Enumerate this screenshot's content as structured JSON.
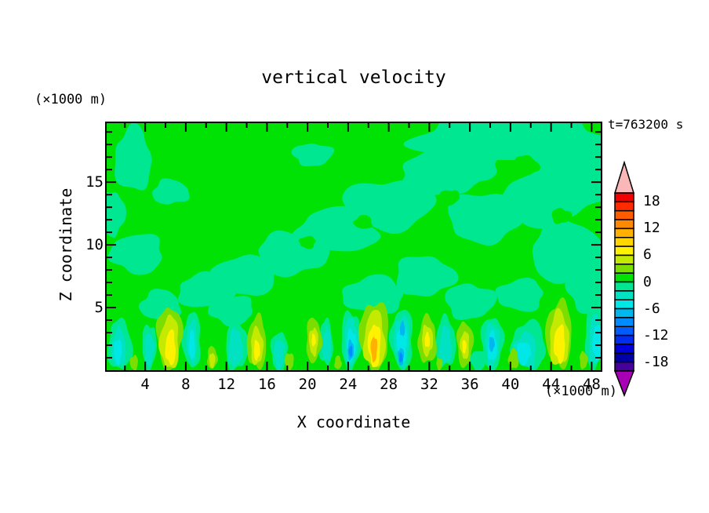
{
  "title": "vertical velocity",
  "timestamp": "t=763200 s",
  "chart_data": {
    "type": "contour",
    "title": "vertical velocity",
    "time_annotation": "t=763200 s",
    "xlabel": "X coordinate",
    "ylabel": "Z coordinate",
    "x_unit": "(×1000 m)",
    "y_unit": "(×1000 m)",
    "xlim": [
      0.2,
      48.9
    ],
    "ylim": [
      0,
      19.7
    ],
    "x_major_ticks": [
      4,
      8,
      12,
      16,
      20,
      24,
      28,
      32,
      36,
      40,
      44,
      48
    ],
    "x_minor_step": 2,
    "y_major_ticks": [
      5,
      10,
      15
    ],
    "y_minor_step": 1,
    "contour_interval": 2,
    "colorbar": {
      "tick_labels": [
        18,
        12,
        6,
        0,
        -6,
        -12,
        -18
      ],
      "value_top": 20,
      "value_bottom": -20,
      "segment_colors": [
        "#f20000",
        "#ff2a00",
        "#ff5c00",
        "#ff8a00",
        "#ffb000",
        "#ffd600",
        "#fff200",
        "#c3ea00",
        "#7bdd00",
        "#00e204",
        "#00e792",
        "#00e2c2",
        "#00e7e7",
        "#00b7ef",
        "#008cff",
        "#005cff",
        "#002df0",
        "#0000da",
        "#0000a8",
        "#46009b"
      ],
      "over_arrow_color": "#f9b7b7",
      "under_arrow_color": "#a800b4"
    },
    "background_level_index": 9,
    "levels_key": "feature = [x, z, rx, rz, color_index] in axis units (×1000 m); color_index points into colorbar.segment_colors",
    "features": [
      [
        40,
        18.6,
        9.5,
        2.0,
        10
      ],
      [
        46,
        15.5,
        4.5,
        3.0,
        10
      ],
      [
        36,
        16.5,
        3.0,
        1.4,
        10
      ],
      [
        33,
        15.6,
        4.0,
        1.8,
        10
      ],
      [
        28,
        13.2,
        4.5,
        2.0,
        10
      ],
      [
        23,
        11.2,
        4.0,
        1.8,
        10
      ],
      [
        18.5,
        9.3,
        3.5,
        1.7,
        10
      ],
      [
        14,
        7.6,
        3.2,
        1.6,
        10
      ],
      [
        10,
        6.3,
        2.8,
        1.4,
        10
      ],
      [
        37.5,
        12.2,
        3.8,
        2.0,
        10
      ],
      [
        42.5,
        13.5,
        3.5,
        2.2,
        10
      ],
      [
        45.5,
        9.5,
        3.5,
        2.5,
        10
      ],
      [
        47.8,
        6.5,
        2.2,
        2.0,
        10
      ],
      [
        2.8,
        16.8,
        1.8,
        2.6,
        10
      ],
      [
        0.8,
        12.5,
        1.2,
        1.8,
        10
      ],
      [
        3.2,
        9.3,
        2.6,
        1.6,
        10
      ],
      [
        6.5,
        14.2,
        1.8,
        1.0,
        10
      ],
      [
        20.5,
        17.2,
        2.0,
        0.9,
        10
      ],
      [
        26.5,
        6.0,
        3.0,
        1.5,
        10
      ],
      [
        31.5,
        7.5,
        3.0,
        1.6,
        10
      ],
      [
        12.5,
        4.8,
        2.2,
        1.2,
        10
      ],
      [
        5.5,
        5.2,
        2.0,
        1.2,
        10
      ],
      [
        36,
        5.5,
        2.5,
        1.4,
        10
      ],
      [
        41,
        6.0,
        2.3,
        1.3,
        10
      ],
      [
        41.5,
        16.3,
        1.3,
        0.8,
        9
      ],
      [
        34,
        13.8,
        1.0,
        0.6,
        9
      ],
      [
        25.5,
        11.8,
        0.9,
        0.55,
        9
      ],
      [
        45,
        12.3,
        1.0,
        0.6,
        9
      ],
      [
        20,
        10.2,
        0.8,
        0.5,
        9
      ],
      [
        1.5,
        2.0,
        1.2,
        2.0,
        10
      ],
      [
        4.4,
        1.9,
        0.7,
        1.8,
        10
      ],
      [
        8.6,
        2.4,
        0.9,
        2.2,
        10
      ],
      [
        13,
        2.0,
        1.1,
        2.0,
        10
      ],
      [
        17.2,
        1.5,
        0.8,
        1.6,
        10
      ],
      [
        21.8,
        2.2,
        0.7,
        1.8,
        10
      ],
      [
        24.3,
        2.4,
        1.0,
        2.3,
        10
      ],
      [
        29.3,
        2.5,
        1.1,
        2.4,
        10
      ],
      [
        33.6,
        2.2,
        1.0,
        2.0,
        10
      ],
      [
        38.2,
        2.2,
        1.1,
        2.1,
        10
      ],
      [
        41.8,
        2.0,
        1.7,
        1.9,
        10
      ],
      [
        48.3,
        2.6,
        1.0,
        2.5,
        10
      ],
      [
        36.8,
        0.8,
        0.8,
        0.8,
        10
      ],
      [
        1.4,
        1.8,
        0.7,
        1.5,
        11
      ],
      [
        4.4,
        1.7,
        0.45,
        1.3,
        11
      ],
      [
        8.6,
        2.3,
        0.5,
        1.7,
        11
      ],
      [
        12.9,
        1.8,
        0.7,
        1.5,
        11
      ],
      [
        17.2,
        1.3,
        0.5,
        1.2,
        11
      ],
      [
        21.9,
        2.0,
        0.45,
        1.3,
        11
      ],
      [
        24.3,
        2.3,
        0.65,
        1.9,
        11
      ],
      [
        29.3,
        2.4,
        0.75,
        2.0,
        11
      ],
      [
        33.6,
        2.0,
        0.6,
        1.5,
        11
      ],
      [
        38.2,
        2.1,
        0.7,
        1.7,
        11
      ],
      [
        41.5,
        1.6,
        1.1,
        1.4,
        11
      ],
      [
        48.4,
        2.4,
        0.65,
        2.0,
        11
      ],
      [
        1.3,
        1.5,
        0.4,
        1.0,
        12
      ],
      [
        8.6,
        2.0,
        0.3,
        1.2,
        12
      ],
      [
        24.3,
        2.0,
        0.45,
        1.3,
        12
      ],
      [
        29.3,
        2.2,
        0.5,
        1.5,
        12
      ],
      [
        38.2,
        1.9,
        0.45,
        1.2,
        12
      ],
      [
        41.3,
        1.4,
        0.7,
        0.9,
        12
      ],
      [
        48.5,
        2.2,
        0.4,
        1.4,
        12
      ],
      [
        24.25,
        1.6,
        0.3,
        0.8,
        13
      ],
      [
        29.2,
        1.1,
        0.3,
        0.7,
        13
      ],
      [
        29.35,
        3.3,
        0.25,
        0.6,
        13
      ],
      [
        38.15,
        2.1,
        0.28,
        0.6,
        13
      ],
      [
        24.25,
        1.5,
        0.18,
        0.45,
        14
      ],
      [
        29.2,
        1.0,
        0.18,
        0.4,
        14
      ],
      [
        6.4,
        2.6,
        1.25,
        2.5,
        8
      ],
      [
        15,
        2.2,
        0.95,
        2.1,
        8
      ],
      [
        20.6,
        2.4,
        0.75,
        1.8,
        8
      ],
      [
        26.6,
        2.8,
        1.45,
        2.7,
        8
      ],
      [
        31.8,
        2.4,
        0.9,
        1.9,
        8
      ],
      [
        35.5,
        2.1,
        0.8,
        1.8,
        8
      ],
      [
        44.8,
        2.9,
        1.3,
        2.6,
        8
      ],
      [
        10.6,
        1.0,
        0.5,
        0.9,
        8
      ],
      [
        18.2,
        0.7,
        0.45,
        0.7,
        8
      ],
      [
        40.3,
        0.9,
        0.5,
        0.8,
        8
      ],
      [
        47.2,
        0.8,
        0.4,
        0.7,
        8
      ],
      [
        2.9,
        0.6,
        0.4,
        0.6,
        8
      ],
      [
        23.0,
        0.6,
        0.35,
        0.55,
        8
      ],
      [
        33.0,
        0.5,
        0.3,
        0.5,
        8
      ],
      [
        6.4,
        2.2,
        0.95,
        2.1,
        7
      ],
      [
        15,
        1.9,
        0.6,
        1.5,
        7
      ],
      [
        20.6,
        2.3,
        0.45,
        1.1,
        7
      ],
      [
        26.6,
        2.4,
        1.05,
        2.3,
        7
      ],
      [
        31.8,
        2.4,
        0.55,
        1.2,
        7
      ],
      [
        35.5,
        2.0,
        0.45,
        1.1,
        7
      ],
      [
        44.8,
        2.5,
        0.95,
        2.2,
        7
      ],
      [
        10.6,
        0.8,
        0.3,
        0.6,
        7
      ],
      [
        6.5,
        1.8,
        0.5,
        1.4,
        6
      ],
      [
        15,
        1.6,
        0.3,
        0.8,
        6
      ],
      [
        26.6,
        2.0,
        0.62,
        1.7,
        6
      ],
      [
        31.8,
        2.4,
        0.25,
        0.6,
        6
      ],
      [
        35.45,
        1.9,
        0.2,
        0.55,
        6
      ],
      [
        44.85,
        2.1,
        0.55,
        1.5,
        6
      ],
      [
        20.6,
        2.4,
        0.2,
        0.5,
        6
      ],
      [
        26.55,
        1.7,
        0.32,
        1.0,
        4
      ]
    ]
  }
}
